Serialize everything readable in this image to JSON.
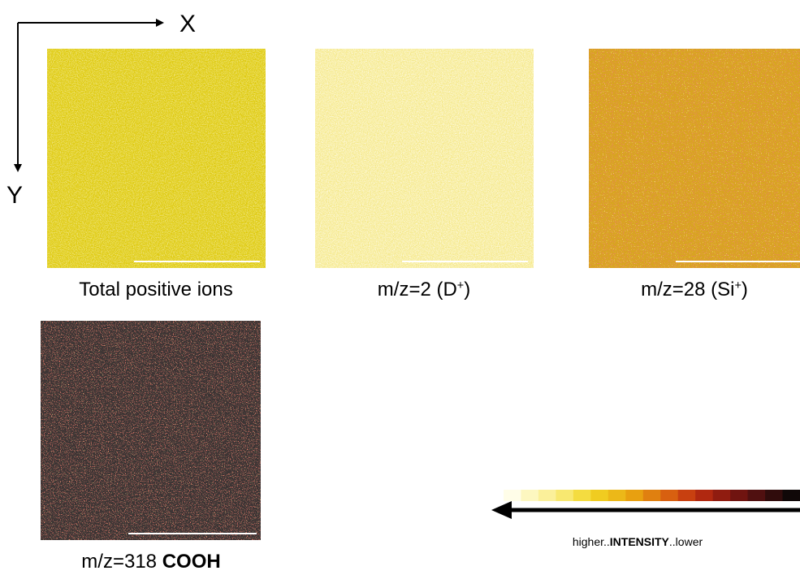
{
  "axes": {
    "x_label": "X",
    "y_label": "Y"
  },
  "panels": [
    {
      "label_parts": [
        {
          "text": "Total positive ions"
        }
      ]
    },
    {
      "label_parts": [
        {
          "text": "m/z=2 (D"
        },
        {
          "text": "+",
          "sup": true
        },
        {
          "text": ")"
        }
      ]
    },
    {
      "label_parts": [
        {
          "text": "m/z=28 (Si"
        },
        {
          "text": "+",
          "sup": true
        },
        {
          "text": ")"
        }
      ]
    },
    {
      "label_parts": [
        {
          "text": "m/z=318 "
        },
        {
          "text": "COOH",
          "bold": true
        }
      ]
    }
  ],
  "colorbar": {
    "colors": [
      "#fffde8",
      "#fdf7c0",
      "#fbf09a",
      "#f8e870",
      "#f4dc40",
      "#f0cc20",
      "#ecb818",
      "#e8a010",
      "#e08010",
      "#d86010",
      "#c84010",
      "#b02810",
      "#901c10",
      "#701410",
      "#501010",
      "#300c0c",
      "#100808"
    ],
    "label_parts": [
      {
        "text": "higher.."
      },
      {
        "text": "INTENSITY",
        "bold": true
      },
      {
        "text": "..lower"
      }
    ]
  }
}
